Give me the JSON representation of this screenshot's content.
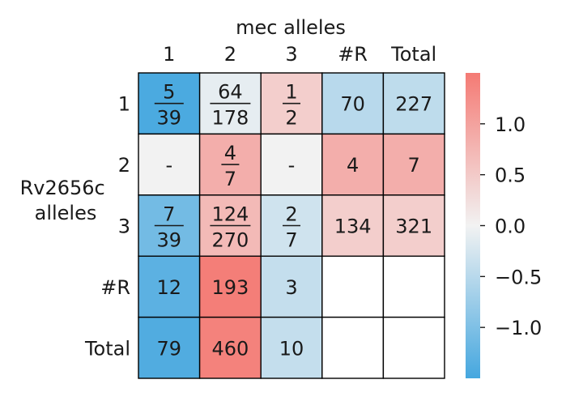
{
  "chart_data": {
    "type": "heatmap",
    "x_title": "mec alleles",
    "y_title_lines": [
      "Rv2656c",
      "alleles"
    ],
    "col_labels": [
      "1",
      "2",
      "3",
      "#R",
      "Total"
    ],
    "row_labels": [
      "1",
      "2",
      "3",
      "#R",
      "Total"
    ],
    "cells": [
      [
        {
          "num": "5",
          "den": "39",
          "v": -1.45
        },
        {
          "num": "64",
          "den": "178",
          "v": -0.1
        },
        {
          "num": "1",
          "den": "2",
          "v": 0.45
        },
        {
          "text": "70",
          "v": -0.5
        },
        {
          "text": "227",
          "v": -0.45
        }
      ],
      [
        {
          "text": "-",
          "v": 0.0
        },
        {
          "num": "4",
          "den": "7",
          "v": 0.85
        },
        {
          "text": "-",
          "v": 0.0
        },
        {
          "text": "4",
          "v": 0.85
        },
        {
          "text": "7",
          "v": 0.85
        }
      ],
      [
        {
          "num": "7",
          "den": "39",
          "v": -1.1
        },
        {
          "num": "124",
          "den": "270",
          "v": 0.7
        },
        {
          "num": "2",
          "den": "7",
          "v": -0.3
        },
        {
          "text": "134",
          "v": 0.45
        },
        {
          "text": "321",
          "v": 0.45
        }
      ],
      [
        {
          "text": "12",
          "v": -1.3
        },
        {
          "text": "193",
          "v": 1.45
        },
        {
          "text": "3",
          "v": -0.4
        },
        {
          "text": "",
          "v": null
        },
        {
          "text": "",
          "v": null
        }
      ],
      [
        {
          "text": "79",
          "v": -1.4
        },
        {
          "text": "460",
          "v": 1.4
        },
        {
          "text": "10",
          "v": -0.4
        },
        {
          "text": "",
          "v": null
        },
        {
          "text": "",
          "v": null
        }
      ]
    ],
    "colorbar": {
      "range": [
        -1.5,
        1.5
      ],
      "ticks": [
        1.0,
        0.5,
        0.0,
        -0.5,
        -1.0
      ],
      "tick_labels": [
        "1.0",
        "0.5",
        "0.0",
        "−0.5",
        "−1.0"
      ]
    },
    "colors": {
      "neg": "#45a7df",
      "mid": "#f2f2f2",
      "pos": "#f47a74",
      "empty": "#ffffff",
      "border": "#000000"
    }
  }
}
